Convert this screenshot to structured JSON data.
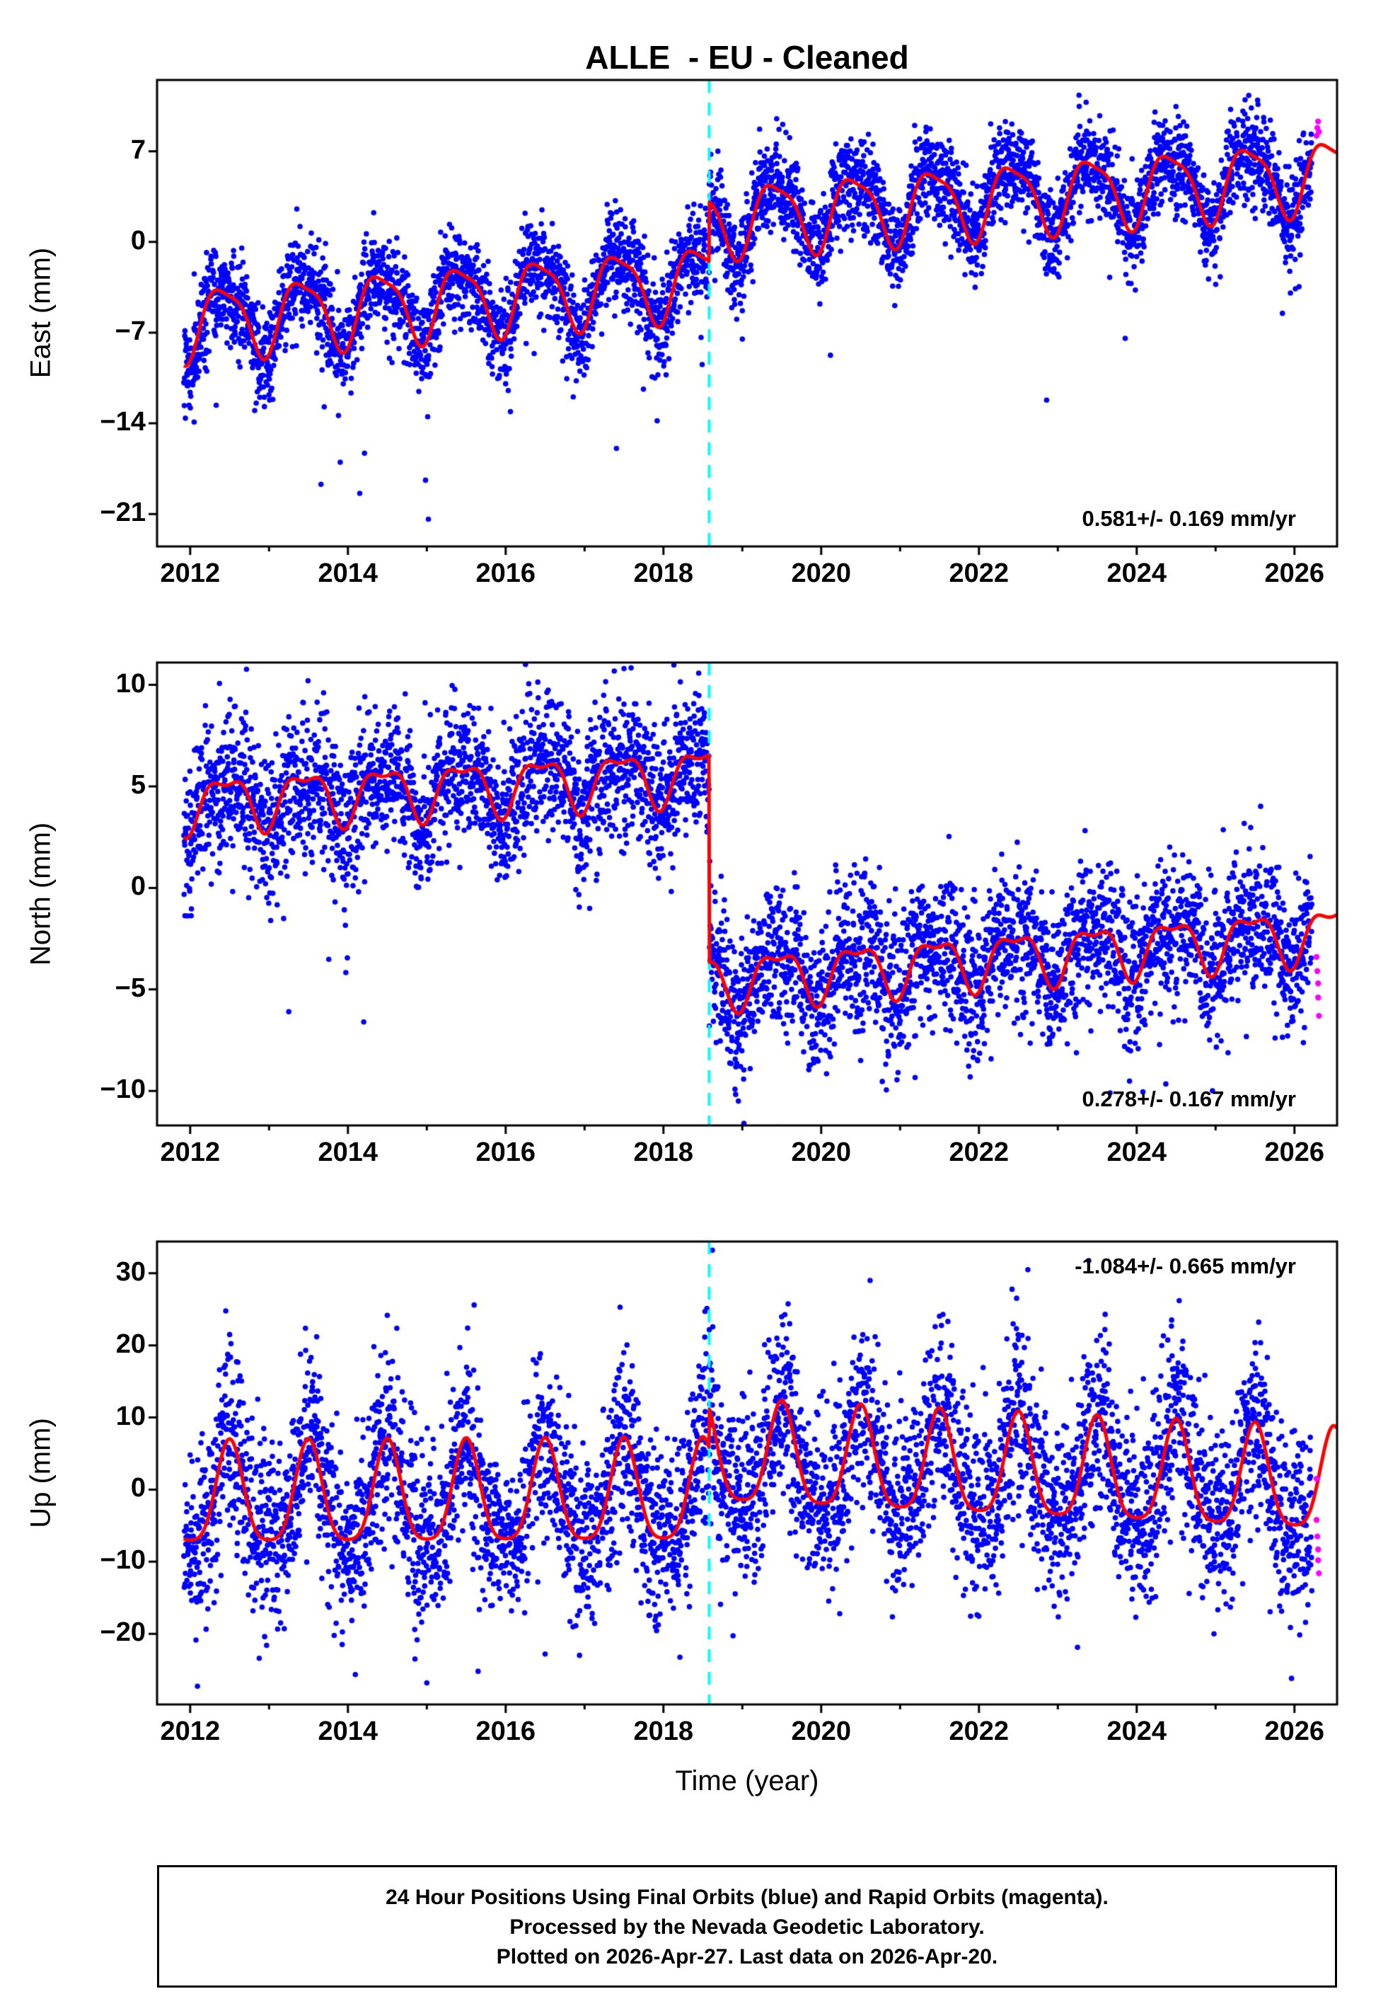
{
  "title": "ALLE  - EU - Cleaned",
  "x_axis": {
    "label": "Time (year)",
    "range": [
      2011.58,
      2026.54
    ],
    "major_ticks": [
      2012,
      2014,
      2016,
      2018,
      2020,
      2022,
      2024,
      2026
    ],
    "minor_tick_interval": 1
  },
  "event_line": {
    "x": 2018.58,
    "color": "#00ffff",
    "style": "dashed-vertical"
  },
  "colors": {
    "final_orbits": "#0000ff",
    "rapid_orbits": "#ff00ff",
    "model_fit": "#ff0000",
    "event_line": "#00ffff",
    "frame": "#000000",
    "background": "#ffffff"
  },
  "chart_data": [
    {
      "type": "scatter",
      "panel": "east",
      "ylabel": "East (mm)",
      "ylim": [
        -23.5,
        12.5
      ],
      "yticks": [
        7,
        0,
        -7,
        -14,
        -21
      ],
      "trend_annotation": "0.581+/- 0.169 mm/yr",
      "trend_mm_per_yr": 0.581,
      "trend_sigma_mm_per_yr": 0.169,
      "model": {
        "base": -6.2,
        "t0": 2012,
        "pre_trend": 0.5,
        "post_trend": 0.45,
        "step_epoch": 2018.58,
        "step": 4.6,
        "annual_amp": 2.7,
        "annual_peak": 0.42,
        "semiannual_amp": 0.7,
        "semiannual_peak": 0.21
      },
      "scatter": {
        "start": 2011.92,
        "end": 2026.22,
        "noise_sd": 1.8,
        "gap_frac": 0.05,
        "outlier_frac": 0.006,
        "outlier_sign": -1,
        "outlier_base": 3,
        "outlier_scale": 4,
        "seed": 101
      },
      "outlier_points": [
        [
          2012.05,
          -13.9
        ],
        [
          2012.33,
          -12.6
        ],
        [
          2013.88,
          -13.4
        ],
        [
          2014.15,
          -19.4
        ],
        [
          2014.21,
          -16.3
        ],
        [
          2015.02,
          -21.4
        ],
        [
          2016.06,
          -13.1
        ],
        [
          2017.92,
          -13.8
        ],
        [
          2019.0,
          -7.5
        ]
      ],
      "rapid_points": [
        [
          2026.28,
          8.2
        ],
        [
          2026.29,
          8.8
        ],
        [
          2026.3,
          9.3
        ],
        [
          2026.31,
          8.5
        ]
      ]
    },
    {
      "type": "scatter",
      "panel": "north",
      "ylabel": "North (mm)",
      "ylim": [
        -11.7,
        11.1
      ],
      "yticks": [
        10,
        5,
        0,
        -5,
        -10
      ],
      "trend_annotation": "0.278+/- 0.167 mm/yr",
      "trend_mm_per_yr": 0.278,
      "trend_sigma_mm_per_yr": 0.167,
      "model": {
        "base": 4.2,
        "t0": 2012,
        "pre_trend": 0.22,
        "post_trend": 0.3,
        "step_epoch": 2018.58,
        "step": -10.2,
        "annual_amp": 1.25,
        "annual_peak": 0.45,
        "semiannual_amp": 0.5,
        "semiannual_peak": 0.2
      },
      "scatter": {
        "start": 2011.92,
        "end": 2026.22,
        "noise_sd": 1.8,
        "gap_frac": 0.05,
        "outlier_frac": 0.006,
        "outlier_sign": -1,
        "outlier_base": 2.5,
        "outlier_scale": 3,
        "seed": 202
      },
      "outlier_points": [
        [
          2013.25,
          -6.1
        ],
        [
          2014.2,
          -6.6
        ],
        [
          2016.45,
          11.2
        ],
        [
          2017.5,
          10.8
        ],
        [
          2018.95,
          -10.5
        ],
        [
          2019.02,
          -11.6
        ],
        [
          2019.1,
          -8.9
        ],
        [
          2020.5,
          -8.5
        ]
      ],
      "rapid_points": [
        [
          2026.28,
          -3.4
        ],
        [
          2026.29,
          -4.1
        ],
        [
          2026.3,
          -4.7
        ],
        [
          2026.3,
          -5.4
        ],
        [
          2026.31,
          -6.3
        ]
      ]
    },
    {
      "type": "scatter",
      "panel": "up",
      "ylabel": "Up (mm)",
      "ylim": [
        -29.8,
        34.4
      ],
      "yticks": [
        30,
        20,
        10,
        0,
        -10,
        -20
      ],
      "trend_annotation": "-1.084+/- 0.665 mm/yr",
      "trend_mm_per_yr": -1.084,
      "trend_sigma_mm_per_yr": 0.665,
      "model": {
        "base": -1.5,
        "t0": 2012,
        "pre_trend": 0.05,
        "post_trend": -0.5,
        "step_epoch": 2018.58,
        "step": 5.5,
        "annual_amp": 7.0,
        "annual_peak": 0.5,
        "semiannual_amp": 1.5,
        "semiannual_peak": 0.5
      },
      "scatter": {
        "start": 2011.92,
        "end": 2026.22,
        "noise_sd": 6.2,
        "gap_frac": 0.05,
        "outlier_frac": 0.01,
        "outlier_sign": 0,
        "outlier_base": 4,
        "outlier_scale": 6,
        "seed": 303
      },
      "outlier_points": [
        [
          2015.0,
          -26.8
        ],
        [
          2015.65,
          -25.2
        ],
        [
          2014.85,
          -23.5
        ],
        [
          2016.5,
          -22.8
        ],
        [
          2018.62,
          33.2
        ],
        [
          2020.62,
          29.0
        ],
        [
          2022.62,
          30.5
        ],
        [
          2015.6,
          25.6
        ],
        [
          2017.45,
          25.3
        ],
        [
          2023.6,
          24.3
        ],
        [
          2012.5,
          21.5
        ],
        [
          2019.6,
          23.0
        ]
      ],
      "rapid_points": [
        [
          2026.28,
          1.5
        ],
        [
          2026.28,
          -4.2
        ],
        [
          2026.29,
          -6.5
        ],
        [
          2026.3,
          -8.3
        ],
        [
          2026.3,
          -9.8
        ],
        [
          2026.31,
          -11.6
        ]
      ]
    }
  ],
  "caption": [
    "24 Hour Positions Using Final Orbits (blue) and Rapid Orbits (magenta).",
    "Processed by the Nevada Geodetic Laboratory.",
    "Plotted on 2026-Apr-27. Last data on 2026-Apr-20."
  ]
}
